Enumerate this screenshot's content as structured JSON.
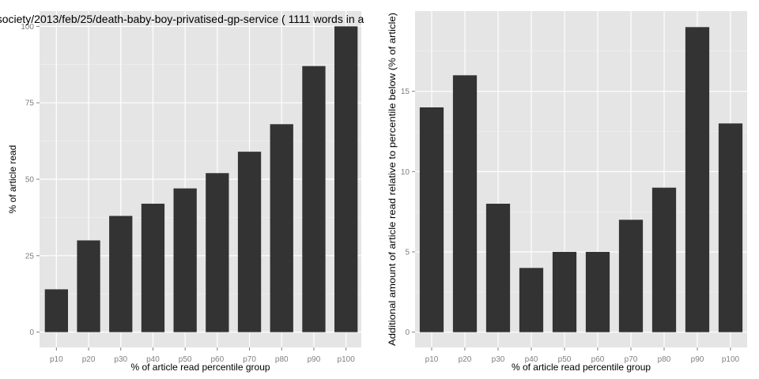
{
  "chart_data": [
    {
      "type": "bar",
      "title": "society/2013/feb/25/death-baby-boy-privatised-gp-service ( 1111 words in a",
      "xlabel": "% of article read percentile group",
      "ylabel": "% of article read",
      "categories": [
        "p10",
        "p20",
        "p30",
        "p40",
        "p50",
        "p60",
        "p70",
        "p80",
        "p90",
        "p100"
      ],
      "values": [
        14,
        30,
        38,
        42,
        47,
        52,
        59,
        68,
        87,
        100
      ],
      "ylim": [
        -5,
        105
      ],
      "yticks": [
        0,
        25,
        50,
        75,
        100
      ],
      "grid": true,
      "bar_color": "#333333",
      "panel_color": "#e5e5e5"
    },
    {
      "type": "bar",
      "title": "",
      "xlabel": "% of article read percentile group",
      "ylabel": "Additional amount of article read relative to percentile below (% of article)",
      "categories": [
        "p10",
        "p20",
        "p30",
        "p40",
        "p50",
        "p60",
        "p70",
        "p80",
        "p90",
        "p100"
      ],
      "values": [
        14,
        16,
        8,
        4,
        5,
        5,
        7,
        9,
        19,
        13
      ],
      "ylim": [
        -0.95,
        20
      ],
      "yticks": [
        0,
        5,
        10,
        15
      ],
      "grid": true,
      "bar_color": "#333333",
      "panel_color": "#e5e5e5"
    }
  ]
}
